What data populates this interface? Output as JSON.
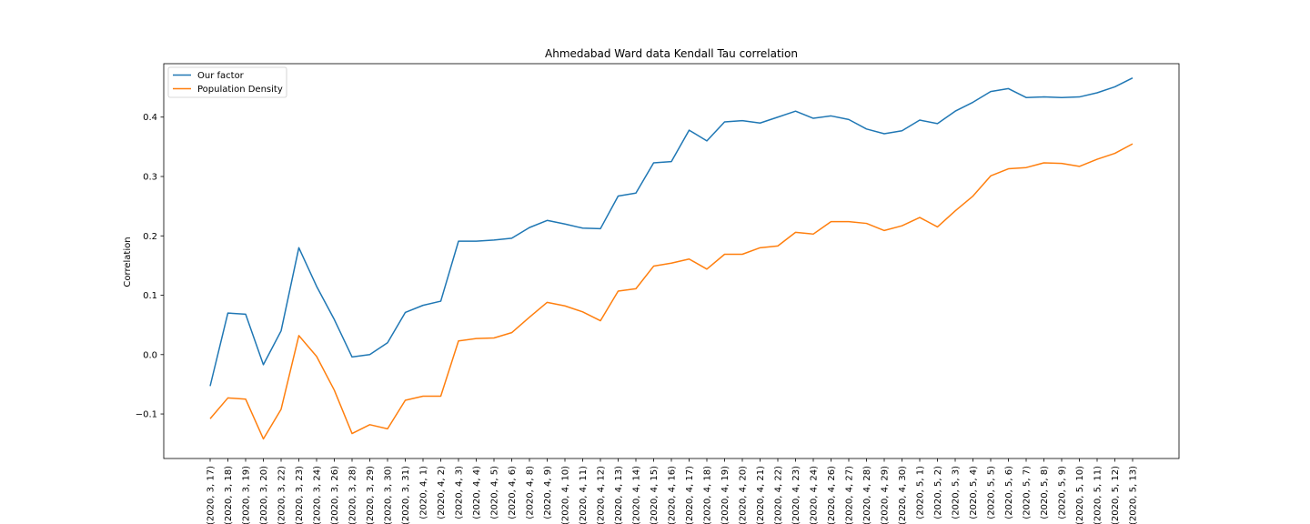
{
  "chart_data": {
    "type": "line",
    "title": "Ahmedabad Ward data Kendall Tau correlation",
    "xlabel": "",
    "ylabel": "Correlation",
    "ylim": [
      -0.175,
      0.49
    ],
    "yticks": [
      -0.1,
      0.0,
      0.1,
      0.2,
      0.3,
      0.4
    ],
    "ytick_labels": [
      "−0.1",
      "0.0",
      "0.1",
      "0.2",
      "0.3",
      "0.4"
    ],
    "grid": false,
    "legend_position": "top-left",
    "categories": [
      "(2020, 3, 17)",
      "(2020, 3, 18)",
      "(2020, 3, 19)",
      "(2020, 3, 20)",
      "(2020, 3, 22)",
      "(2020, 3, 23)",
      "(2020, 3, 24)",
      "(2020, 3, 26)",
      "(2020, 3, 28)",
      "(2020, 3, 29)",
      "(2020, 3, 30)",
      "(2020, 3, 31)",
      "(2020, 4, 1)",
      "(2020, 4, 2)",
      "(2020, 4, 3)",
      "(2020, 4, 4)",
      "(2020, 4, 5)",
      "(2020, 4, 6)",
      "(2020, 4, 8)",
      "(2020, 4, 9)",
      "(2020, 4, 10)",
      "(2020, 4, 11)",
      "(2020, 4, 12)",
      "(2020, 4, 13)",
      "(2020, 4, 14)",
      "(2020, 4, 15)",
      "(2020, 4, 16)",
      "(2020, 4, 17)",
      "(2020, 4, 18)",
      "(2020, 4, 19)",
      "(2020, 4, 20)",
      "(2020, 4, 21)",
      "(2020, 4, 22)",
      "(2020, 4, 23)",
      "(2020, 4, 24)",
      "(2020, 4, 26)",
      "(2020, 4, 27)",
      "(2020, 4, 28)",
      "(2020, 4, 29)",
      "(2020, 4, 30)",
      "(2020, 5, 1)",
      "(2020, 5, 2)",
      "(2020, 5, 3)",
      "(2020, 5, 4)",
      "(2020, 5, 5)",
      "(2020, 5, 6)",
      "(2020, 5, 7)",
      "(2020, 5, 8)",
      "(2020, 5, 9)",
      "(2020, 5, 10)",
      "(2020, 5, 11)",
      "(2020, 5, 12)",
      "(2020, 5, 13)"
    ],
    "series": [
      {
        "name": "Our factor",
        "color": "#1f77b4",
        "values": [
          -0.053,
          0.07,
          0.068,
          -0.017,
          0.04,
          0.18,
          0.115,
          0.059,
          -0.004,
          0.0,
          0.02,
          0.071,
          0.083,
          0.09,
          0.191,
          0.191,
          0.193,
          0.196,
          0.214,
          0.226,
          0.22,
          0.213,
          0.212,
          0.267,
          0.272,
          0.323,
          0.325,
          0.378,
          0.36,
          0.392,
          0.394,
          0.39,
          0.4,
          0.41,
          0.398,
          0.402,
          0.396,
          0.38,
          0.372,
          0.377,
          0.395,
          0.389,
          0.41,
          0.425,
          0.443,
          0.448,
          0.433,
          0.434,
          0.433,
          0.434,
          0.441,
          0.451,
          0.466
        ]
      },
      {
        "name": "Population Density",
        "color": "#ff7f0e",
        "values": [
          -0.108,
          -0.073,
          -0.075,
          -0.142,
          -0.092,
          0.032,
          -0.003,
          -0.06,
          -0.133,
          -0.118,
          -0.125,
          -0.077,
          -0.07,
          -0.07,
          0.023,
          0.027,
          0.028,
          0.037,
          0.063,
          0.088,
          0.082,
          0.072,
          0.057,
          0.107,
          0.111,
          0.149,
          0.154,
          0.161,
          0.144,
          0.169,
          0.169,
          0.18,
          0.183,
          0.206,
          0.203,
          0.224,
          0.224,
          0.221,
          0.209,
          0.217,
          0.231,
          0.215,
          0.242,
          0.267,
          0.301,
          0.313,
          0.315,
          0.323,
          0.322,
          0.317,
          0.329,
          0.339,
          0.355
        ]
      }
    ]
  }
}
